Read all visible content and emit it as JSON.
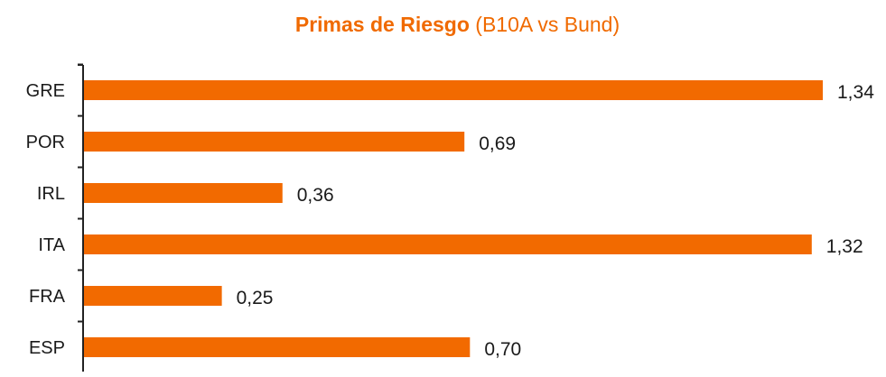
{
  "chart_data": {
    "type": "bar",
    "orientation": "horizontal",
    "title": "Primas de Riesgo",
    "subtitle": "(B10A vs Bund)",
    "categories": [
      "GRE",
      "POR",
      "IRL",
      "ITA",
      "FRA",
      "ESP"
    ],
    "values": [
      1.34,
      0.69,
      0.36,
      1.32,
      0.25,
      0.7
    ],
    "value_labels": [
      "1,34",
      "0,69",
      "0,36",
      "1,32",
      "0,25",
      "0,70"
    ],
    "xlim": [
      0,
      1.34
    ],
    "xlabel": "",
    "ylabel": "",
    "grid": false,
    "legend": "none",
    "bar_color": "#f26a00",
    "title_color": "#f06a00"
  }
}
